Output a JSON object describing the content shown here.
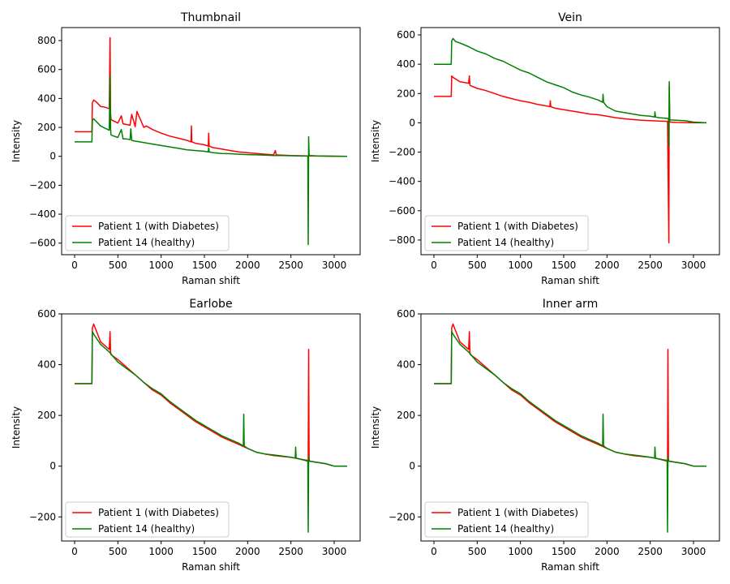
{
  "legend": [
    {
      "name": "Patient 1 (with Diabetes)",
      "color": "#ff0000"
    },
    {
      "name": "Patient 14 (healthy)",
      "color": "#008000"
    }
  ],
  "chart_data": [
    {
      "type": "line",
      "title": "Thumbnail",
      "xlabel": "Raman shift",
      "ylabel": "Intensity",
      "xlim": [
        -150,
        3300
      ],
      "ylim": [
        -680,
        890
      ],
      "xticks": [
        0,
        500,
        1000,
        1500,
        2000,
        2500,
        3000
      ],
      "yticks": [
        -600,
        -400,
        -200,
        0,
        200,
        400,
        600,
        800
      ],
      "legend_position": "lower-left",
      "series": [
        {
          "name": "Patient 1 (with Diabetes)",
          "color": "#ff0000",
          "x": [
            0,
            200,
            205,
            220,
            260,
            300,
            350,
            400,
            410,
            415,
            420,
            430,
            500,
            540,
            560,
            600,
            640,
            660,
            700,
            720,
            800,
            830,
            900,
            1000,
            1100,
            1200,
            1300,
            1345,
            1350,
            1355,
            1400,
            1500,
            1545,
            1550,
            1555,
            1600,
            1700,
            1800,
            1900,
            2000,
            2100,
            2200,
            2300,
            2320,
            2330,
            2400,
            2500,
            2600,
            2700,
            2800,
            2900,
            3000,
            3150
          ],
          "y": [
            170,
            170,
            370,
            390,
            370,
            345,
            340,
            330,
            820,
            300,
            260,
            250,
            230,
            280,
            225,
            220,
            215,
            290,
            205,
            310,
            200,
            210,
            185,
            160,
            140,
            125,
            110,
            100,
            210,
            100,
            90,
            80,
            70,
            160,
            70,
            60,
            50,
            40,
            30,
            25,
            20,
            15,
            10,
            40,
            10,
            8,
            5,
            4,
            3,
            2,
            1,
            0,
            0
          ]
        },
        {
          "name": "Patient 14 (healthy)",
          "color": "#008000",
          "x": [
            0,
            200,
            205,
            220,
            300,
            400,
            410,
            415,
            420,
            430,
            500,
            540,
            560,
            600,
            640,
            650,
            660,
            700,
            800,
            900,
            1000,
            1100,
            1200,
            1300,
            1400,
            1500,
            1545,
            1550,
            1555,
            1600,
            1700,
            1800,
            1900,
            2000,
            2100,
            2200,
            2300,
            2400,
            2500,
            2600,
            2695,
            2700,
            2705,
            2710,
            2715,
            2800,
            2900,
            3000,
            3150
          ],
          "y": [
            100,
            100,
            250,
            260,
            210,
            180,
            560,
            200,
            150,
            145,
            130,
            185,
            120,
            120,
            115,
            190,
            110,
            105,
            95,
            85,
            75,
            65,
            55,
            45,
            40,
            35,
            30,
            60,
            30,
            25,
            20,
            18,
            15,
            12,
            10,
            8,
            6,
            5,
            4,
            3,
            2,
            -610,
            135,
            10,
            5,
            3,
            2,
            1,
            0
          ]
        }
      ]
    },
    {
      "type": "line",
      "title": "Vein",
      "xlabel": "Raman shift",
      "ylabel": "Intensity",
      "xlim": [
        -150,
        3300
      ],
      "ylim": [
        -900,
        650
      ],
      "xticks": [
        0,
        500,
        1000,
        1500,
        2000,
        2500,
        3000
      ],
      "yticks": [
        -800,
        -600,
        -400,
        -200,
        0,
        200,
        400,
        600
      ],
      "legend_position": "lower-left",
      "series": [
        {
          "name": "Patient 1 (with Diabetes)",
          "color": "#ff0000",
          "x": [
            0,
            200,
            205,
            220,
            300,
            400,
            410,
            415,
            420,
            500,
            600,
            700,
            800,
            900,
            1000,
            1100,
            1200,
            1300,
            1340,
            1345,
            1350,
            1400,
            1500,
            1600,
            1700,
            1800,
            1900,
            2000,
            2100,
            2200,
            2300,
            2400,
            2500,
            2600,
            2700,
            2715,
            2720,
            2725,
            2730,
            2800,
            2900,
            3000,
            3150
          ],
          "y": [
            180,
            180,
            320,
            310,
            280,
            270,
            320,
            260,
            255,
            235,
            220,
            200,
            180,
            165,
            150,
            140,
            125,
            115,
            110,
            150,
            110,
            100,
            90,
            80,
            70,
            60,
            55,
            45,
            35,
            28,
            22,
            18,
            15,
            12,
            10,
            -820,
            250,
            10,
            5,
            3,
            2,
            0,
            0
          ]
        },
        {
          "name": "Patient 14 (healthy)",
          "color": "#008000",
          "x": [
            0,
            200,
            205,
            220,
            250,
            300,
            400,
            500,
            600,
            700,
            800,
            900,
            1000,
            1100,
            1200,
            1300,
            1400,
            1500,
            1600,
            1700,
            1800,
            1900,
            1950,
            1955,
            1960,
            2000,
            2100,
            2200,
            2300,
            2400,
            2500,
            2550,
            2555,
            2560,
            2600,
            2700,
            2710,
            2715,
            2720,
            2725,
            2800,
            2900,
            3000,
            3150
          ],
          "y": [
            400,
            400,
            560,
            575,
            555,
            545,
            520,
            490,
            470,
            440,
            420,
            390,
            360,
            340,
            310,
            280,
            260,
            240,
            210,
            190,
            175,
            155,
            140,
            195,
            140,
            110,
            80,
            70,
            60,
            50,
            45,
            40,
            75,
            40,
            35,
            30,
            28,
            -160,
            280,
            20,
            18,
            15,
            5,
            0
          ]
        }
      ]
    },
    {
      "type": "line",
      "title": "Earlobe",
      "xlabel": "Raman shift",
      "ylabel": "Intensity",
      "xlim": [
        -150,
        3300
      ],
      "ylim": [
        -295,
        600
      ],
      "xticks": [
        0,
        500,
        1000,
        1500,
        2000,
        2500,
        3000
      ],
      "yticks": [
        -200,
        0,
        200,
        400,
        600
      ],
      "legend_position": "lower-left",
      "series": [
        {
          "name": "Patient 1 (with Diabetes)",
          "color": "#ff0000",
          "x": [
            0,
            200,
            205,
            220,
            300,
            400,
            410,
            415,
            420,
            500,
            600,
            700,
            800,
            900,
            1000,
            1100,
            1200,
            1300,
            1400,
            1500,
            1600,
            1700,
            1800,
            1900,
            2000,
            2100,
            2200,
            2300,
            2400,
            2500,
            2600,
            2700,
            2705,
            2710,
            2715,
            2800,
            2900,
            3000,
            3150
          ],
          "y": [
            325,
            325,
            545,
            560,
            490,
            460,
            530,
            450,
            440,
            420,
            390,
            360,
            330,
            300,
            280,
            250,
            225,
            200,
            175,
            155,
            135,
            115,
            100,
            85,
            70,
            55,
            48,
            42,
            38,
            35,
            28,
            22,
            460,
            30,
            20,
            15,
            10,
            0,
            0
          ]
        },
        {
          "name": "Patient 14 (healthy)",
          "color": "#008000",
          "x": [
            0,
            200,
            205,
            220,
            300,
            400,
            500,
            600,
            700,
            800,
            900,
            1000,
            1100,
            1200,
            1300,
            1400,
            1500,
            1600,
            1700,
            1800,
            1900,
            1950,
            1955,
            1960,
            2000,
            2100,
            2200,
            2300,
            2400,
            2500,
            2550,
            2555,
            2560,
            2600,
            2695,
            2700,
            2705,
            2710,
            2800,
            2900,
            3000,
            3150
          ],
          "y": [
            325,
            325,
            530,
            520,
            480,
            450,
            410,
            385,
            360,
            330,
            305,
            285,
            255,
            230,
            205,
            180,
            160,
            140,
            120,
            105,
            90,
            80,
            205,
            80,
            70,
            55,
            48,
            44,
            40,
            35,
            32,
            75,
            32,
            28,
            20,
            -260,
            40,
            20,
            15,
            10,
            0,
            0
          ]
        }
      ]
    },
    {
      "type": "line",
      "title": "Inner arm",
      "xlabel": "Raman shift",
      "ylabel": "Intensity",
      "xlim": [
        -150,
        3300
      ],
      "ylim": [
        -295,
        600
      ],
      "xticks": [
        0,
        500,
        1000,
        1500,
        2000,
        2500,
        3000
      ],
      "yticks": [
        -200,
        0,
        200,
        400,
        600
      ],
      "legend_position": "lower-left",
      "series": [
        {
          "name": "Patient 1 (with Diabetes)",
          "color": "#ff0000",
          "x": [
            0,
            200,
            205,
            220,
            300,
            400,
            410,
            415,
            420,
            500,
            600,
            700,
            800,
            900,
            1000,
            1100,
            1200,
            1300,
            1400,
            1500,
            1600,
            1700,
            1800,
            1900,
            2000,
            2100,
            2200,
            2300,
            2400,
            2500,
            2600,
            2700,
            2705,
            2710,
            2715,
            2800,
            2900,
            3000,
            3150
          ],
          "y": [
            325,
            325,
            545,
            560,
            490,
            460,
            530,
            450,
            440,
            420,
            390,
            360,
            330,
            300,
            280,
            250,
            225,
            200,
            175,
            155,
            135,
            115,
            100,
            85,
            70,
            55,
            48,
            42,
            38,
            35,
            28,
            22,
            460,
            30,
            20,
            15,
            10,
            0,
            0
          ]
        },
        {
          "name": "Patient 14 (healthy)",
          "color": "#008000",
          "x": [
            0,
            200,
            205,
            220,
            300,
            400,
            500,
            600,
            700,
            800,
            900,
            1000,
            1100,
            1200,
            1300,
            1400,
            1500,
            1600,
            1700,
            1800,
            1900,
            1950,
            1955,
            1960,
            2000,
            2100,
            2200,
            2300,
            2400,
            2500,
            2550,
            2555,
            2560,
            2600,
            2695,
            2700,
            2705,
            2710,
            2800,
            2900,
            3000,
            3150
          ],
          "y": [
            325,
            325,
            530,
            520,
            480,
            450,
            410,
            385,
            360,
            330,
            305,
            285,
            255,
            230,
            205,
            180,
            160,
            140,
            120,
            105,
            90,
            80,
            205,
            80,
            70,
            55,
            48,
            44,
            40,
            35,
            32,
            75,
            32,
            28,
            20,
            -260,
            40,
            20,
            15,
            10,
            0,
            0
          ]
        }
      ]
    }
  ]
}
